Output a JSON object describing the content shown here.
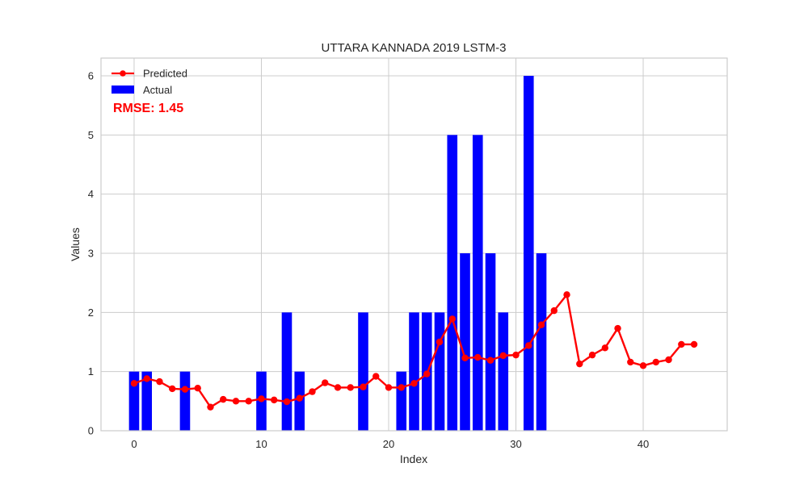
{
  "chart_data": {
    "type": "bar",
    "title": "UTTARA KANNADA 2019 LSTM-3",
    "xlabel": "Index",
    "ylabel": "Values",
    "xlim": [
      -2.6,
      46.6
    ],
    "ylim": [
      0,
      6.3
    ],
    "x_ticks": [
      0,
      10,
      20,
      30,
      40
    ],
    "y_ticks": [
      0,
      1,
      2,
      3,
      4,
      5,
      6
    ],
    "grid": true,
    "legend_position": "top-left",
    "annotation": "RMSE: 1.45",
    "series": [
      {
        "name": "Predicted",
        "kind": "line",
        "color": "#ff0000",
        "x": [
          0,
          1,
          2,
          3,
          4,
          5,
          6,
          7,
          8,
          9,
          10,
          11,
          12,
          13,
          14,
          15,
          16,
          17,
          18,
          19,
          20,
          21,
          22,
          23,
          24,
          25,
          26,
          27,
          28,
          29,
          30,
          31,
          32,
          33,
          34,
          35,
          36,
          37,
          38,
          39,
          40,
          41,
          42,
          43,
          44
        ],
        "values": [
          0.8,
          0.88,
          0.83,
          0.71,
          0.7,
          0.72,
          0.4,
          0.53,
          0.5,
          0.5,
          0.54,
          0.52,
          0.49,
          0.55,
          0.66,
          0.81,
          0.73,
          0.73,
          0.74,
          0.92,
          0.73,
          0.73,
          0.8,
          0.96,
          1.5,
          1.89,
          1.23,
          1.24,
          1.19,
          1.27,
          1.28,
          1.44,
          1.79,
          2.03,
          2.3,
          1.13,
          1.28,
          1.4,
          1.73,
          1.16,
          1.1,
          1.16,
          1.2,
          1.46,
          1.46
        ]
      },
      {
        "name": "Actual",
        "kind": "bar",
        "color": "#0000ff",
        "x": [
          0,
          1,
          2,
          3,
          4,
          5,
          6,
          7,
          8,
          9,
          10,
          11,
          12,
          13,
          14,
          15,
          16,
          17,
          18,
          19,
          20,
          21,
          22,
          23,
          24,
          25,
          26,
          27,
          28,
          29,
          30,
          31,
          32
        ],
        "values": [
          1,
          1,
          0,
          0,
          1,
          0,
          0,
          0,
          0,
          0,
          1,
          0,
          2,
          1,
          0,
          0,
          0,
          0,
          2,
          0,
          0,
          1,
          2,
          2,
          2,
          5,
          3,
          5,
          3,
          2,
          0,
          6,
          3
        ]
      }
    ]
  }
}
